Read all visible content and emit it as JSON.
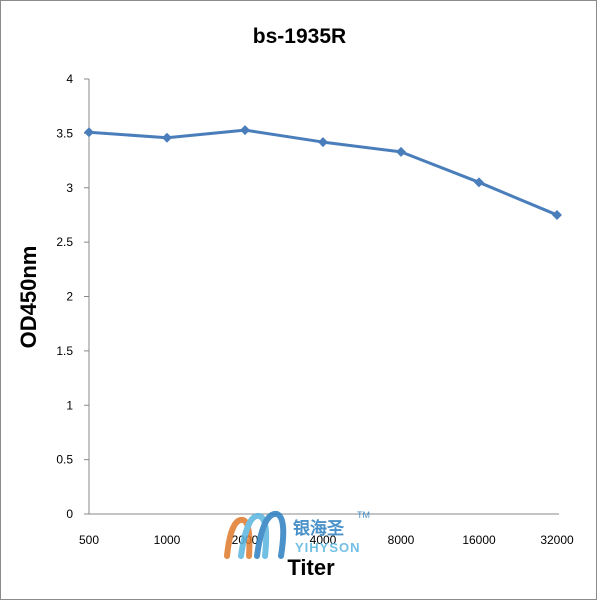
{
  "chart_data": {
    "type": "line",
    "title": "bs-1935R",
    "xlabel": "Titer",
    "ylabel": "OD450nm",
    "categories": [
      "500",
      "1000",
      "2000",
      "4000",
      "8000",
      "16000",
      "32000"
    ],
    "series": [
      {
        "values": [
          3.51,
          3.46,
          3.53,
          3.42,
          3.33,
          3.05,
          2.75
        ],
        "color": "#4a7ebb"
      }
    ],
    "ylim": [
      0,
      4
    ],
    "yticks": [
      "0",
      "0.5",
      "1",
      "1.5",
      "2",
      "2.5",
      "3",
      "3.5",
      "4"
    ],
    "grid": false,
    "legend": "none",
    "marker": "diamond"
  },
  "watermark": {
    "text_cn": "银海圣",
    "text_en": "YIHYSON",
    "tm": "TM",
    "colors": [
      "#2b7fc0",
      "#5ab4e0",
      "#e07a2b"
    ]
  }
}
